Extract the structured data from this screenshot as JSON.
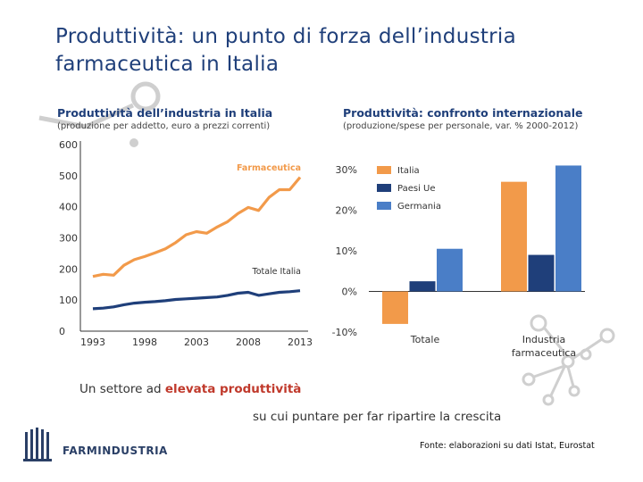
{
  "slide": {
    "title": "Produttività: un punto di forza dell’industria farmaceutica in Italia",
    "tagline_prefix": "Un settore ad ",
    "tagline_highlight": "elevata produttività",
    "tagline_second": "su cui puntare per far ripartire la crescita",
    "source": "Fonte: elaborazioni su dati Istat, Eurostat",
    "logo_text": "FARMINDUSTRIA"
  },
  "colors": {
    "title": "#1f3f7a",
    "orange": "#f29a4a",
    "navy": "#1f3f7a",
    "blue": "#4a7ec7",
    "decor": "#c8c8c8",
    "highlight": "#c0392b"
  },
  "chart_data": [
    {
      "type": "line",
      "title": "Produttività dell’industria in Italia",
      "subtitle": "(produzione per addetto, euro a prezzi correnti)",
      "x": [
        1993,
        1994,
        1995,
        1996,
        1997,
        1998,
        1999,
        2000,
        2001,
        2002,
        2003,
        2004,
        2005,
        2006,
        2007,
        2008,
        2009,
        2010,
        2011,
        2012,
        2013
      ],
      "x_ticks": [
        "1993",
        "1998",
        "2003",
        "2008",
        "2013"
      ],
      "y_ticks": [
        "0",
        "100",
        "200",
        "300",
        "400",
        "500",
        "600"
      ],
      "ylim": [
        0,
        600
      ],
      "series": [
        {
          "name": "Farmaceutica",
          "color": "#f29a4a",
          "values": [
            176,
            183,
            180,
            212,
            230,
            240,
            252,
            265,
            285,
            310,
            320,
            315,
            335,
            352,
            378,
            398,
            388,
            430,
            455,
            455,
            495
          ]
        },
        {
          "name": "Totale Italia",
          "color": "#1f3f7a",
          "values": [
            72,
            74,
            78,
            85,
            90,
            93,
            95,
            98,
            102,
            104,
            106,
            108,
            110,
            115,
            122,
            125,
            115,
            120,
            125,
            127,
            130
          ]
        }
      ]
    },
    {
      "type": "bar",
      "title": "Produttività: confronto internazionale",
      "subtitle": "(produzione/spese per personale, var. % 2000-2012)",
      "categories": [
        "Totale",
        "Industria farmaceutica"
      ],
      "y_ticks": [
        "-10%",
        "0%",
        "10%",
        "20%",
        "30%"
      ],
      "ylim": [
        -10,
        30
      ],
      "series": [
        {
          "name": "Italia",
          "color": "#f29a4a",
          "values": [
            -8,
            27
          ]
        },
        {
          "name": "Paesi Ue",
          "color": "#1f3f7a",
          "values": [
            2.5,
            9
          ]
        },
        {
          "name": "Germania",
          "color": "#4a7ec7",
          "values": [
            10.5,
            31
          ]
        }
      ]
    }
  ]
}
